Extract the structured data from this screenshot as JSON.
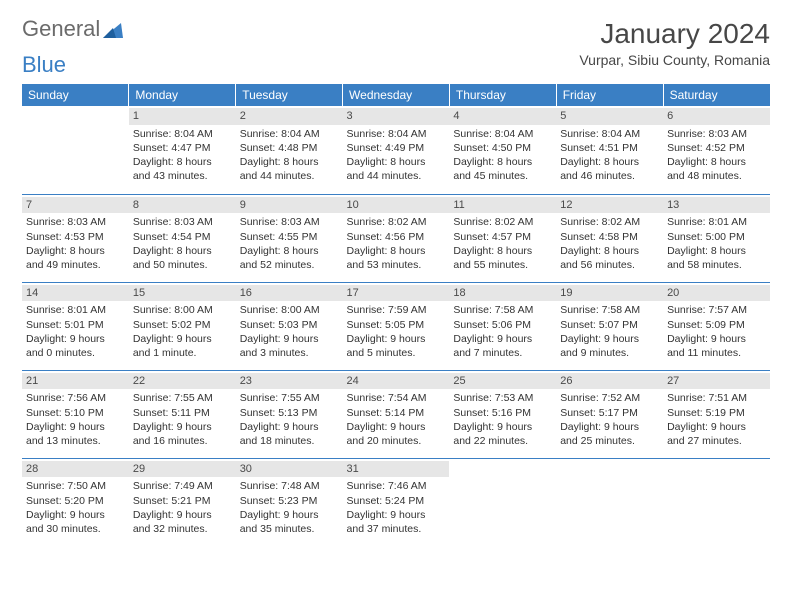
{
  "brand": {
    "part1": "General",
    "part2": "Blue"
  },
  "title": "January 2024",
  "location": "Vurpar, Sibiu County, Romania",
  "colors": {
    "header_bg": "#3a7fc4",
    "header_text": "#ffffff",
    "daynum_bg": "#e6e6e6",
    "border": "#3a7fc4",
    "text": "#333333",
    "page_bg": "#ffffff"
  },
  "daysOfWeek": [
    "Sunday",
    "Monday",
    "Tuesday",
    "Wednesday",
    "Thursday",
    "Friday",
    "Saturday"
  ],
  "weeks": [
    [
      null,
      {
        "n": "1",
        "sr": "8:04 AM",
        "ss": "4:47 PM",
        "dl": "8 hours and 43 minutes."
      },
      {
        "n": "2",
        "sr": "8:04 AM",
        "ss": "4:48 PM",
        "dl": "8 hours and 44 minutes."
      },
      {
        "n": "3",
        "sr": "8:04 AM",
        "ss": "4:49 PM",
        "dl": "8 hours and 44 minutes."
      },
      {
        "n": "4",
        "sr": "8:04 AM",
        "ss": "4:50 PM",
        "dl": "8 hours and 45 minutes."
      },
      {
        "n": "5",
        "sr": "8:04 AM",
        "ss": "4:51 PM",
        "dl": "8 hours and 46 minutes."
      },
      {
        "n": "6",
        "sr": "8:03 AM",
        "ss": "4:52 PM",
        "dl": "8 hours and 48 minutes."
      }
    ],
    [
      {
        "n": "7",
        "sr": "8:03 AM",
        "ss": "4:53 PM",
        "dl": "8 hours and 49 minutes."
      },
      {
        "n": "8",
        "sr": "8:03 AM",
        "ss": "4:54 PM",
        "dl": "8 hours and 50 minutes."
      },
      {
        "n": "9",
        "sr": "8:03 AM",
        "ss": "4:55 PM",
        "dl": "8 hours and 52 minutes."
      },
      {
        "n": "10",
        "sr": "8:02 AM",
        "ss": "4:56 PM",
        "dl": "8 hours and 53 minutes."
      },
      {
        "n": "11",
        "sr": "8:02 AM",
        "ss": "4:57 PM",
        "dl": "8 hours and 55 minutes."
      },
      {
        "n": "12",
        "sr": "8:02 AM",
        "ss": "4:58 PM",
        "dl": "8 hours and 56 minutes."
      },
      {
        "n": "13",
        "sr": "8:01 AM",
        "ss": "5:00 PM",
        "dl": "8 hours and 58 minutes."
      }
    ],
    [
      {
        "n": "14",
        "sr": "8:01 AM",
        "ss": "5:01 PM",
        "dl": "9 hours and 0 minutes."
      },
      {
        "n": "15",
        "sr": "8:00 AM",
        "ss": "5:02 PM",
        "dl": "9 hours and 1 minute."
      },
      {
        "n": "16",
        "sr": "8:00 AM",
        "ss": "5:03 PM",
        "dl": "9 hours and 3 minutes."
      },
      {
        "n": "17",
        "sr": "7:59 AM",
        "ss": "5:05 PM",
        "dl": "9 hours and 5 minutes."
      },
      {
        "n": "18",
        "sr": "7:58 AM",
        "ss": "5:06 PM",
        "dl": "9 hours and 7 minutes."
      },
      {
        "n": "19",
        "sr": "7:58 AM",
        "ss": "5:07 PM",
        "dl": "9 hours and 9 minutes."
      },
      {
        "n": "20",
        "sr": "7:57 AM",
        "ss": "5:09 PM",
        "dl": "9 hours and 11 minutes."
      }
    ],
    [
      {
        "n": "21",
        "sr": "7:56 AM",
        "ss": "5:10 PM",
        "dl": "9 hours and 13 minutes."
      },
      {
        "n": "22",
        "sr": "7:55 AM",
        "ss": "5:11 PM",
        "dl": "9 hours and 16 minutes."
      },
      {
        "n": "23",
        "sr": "7:55 AM",
        "ss": "5:13 PM",
        "dl": "9 hours and 18 minutes."
      },
      {
        "n": "24",
        "sr": "7:54 AM",
        "ss": "5:14 PM",
        "dl": "9 hours and 20 minutes."
      },
      {
        "n": "25",
        "sr": "7:53 AM",
        "ss": "5:16 PM",
        "dl": "9 hours and 22 minutes."
      },
      {
        "n": "26",
        "sr": "7:52 AM",
        "ss": "5:17 PM",
        "dl": "9 hours and 25 minutes."
      },
      {
        "n": "27",
        "sr": "7:51 AM",
        "ss": "5:19 PM",
        "dl": "9 hours and 27 minutes."
      }
    ],
    [
      {
        "n": "28",
        "sr": "7:50 AM",
        "ss": "5:20 PM",
        "dl": "9 hours and 30 minutes."
      },
      {
        "n": "29",
        "sr": "7:49 AM",
        "ss": "5:21 PM",
        "dl": "9 hours and 32 minutes."
      },
      {
        "n": "30",
        "sr": "7:48 AM",
        "ss": "5:23 PM",
        "dl": "9 hours and 35 minutes."
      },
      {
        "n": "31",
        "sr": "7:46 AM",
        "ss": "5:24 PM",
        "dl": "9 hours and 37 minutes."
      },
      null,
      null,
      null
    ]
  ],
  "labels": {
    "sunrise": "Sunrise:",
    "sunset": "Sunset:",
    "daylight": "Daylight:"
  }
}
